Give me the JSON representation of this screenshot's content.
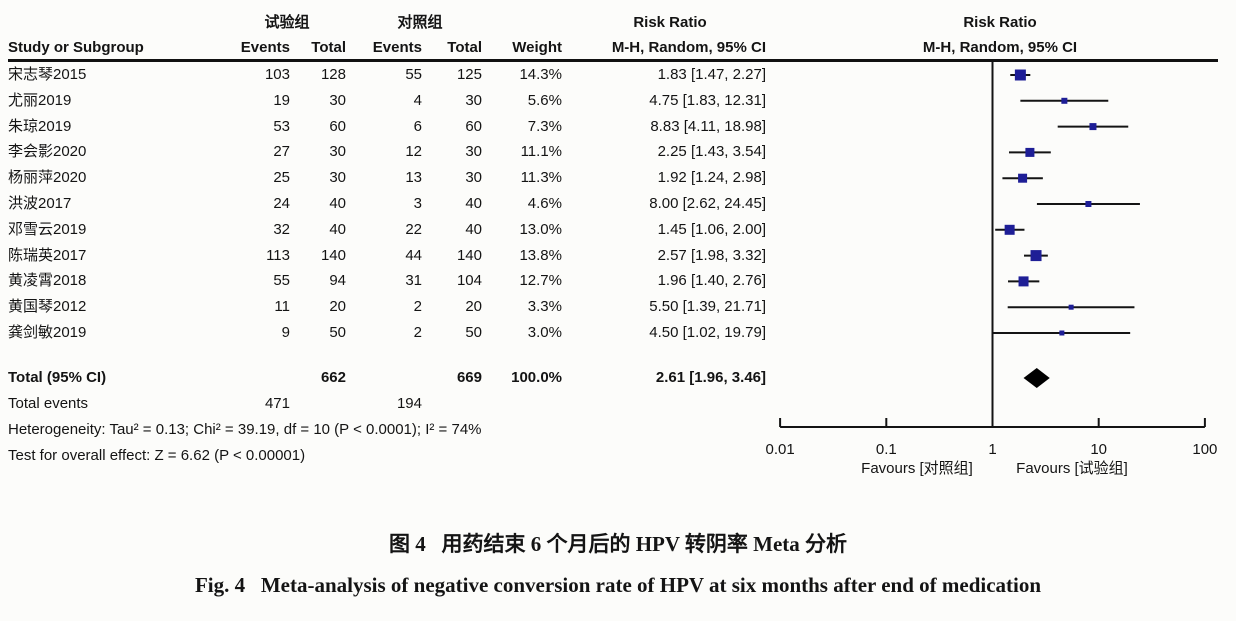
{
  "header": {
    "group_exp": "试验组",
    "group_ctrl": "对照组",
    "risk_ratio_title_text": "Risk Ratio",
    "risk_ratio_title_plot": "Risk Ratio",
    "method_text": "M-H, Random, 95% CI",
    "method_plot": "M-H, Random, 95% CI",
    "study_col": "Study or Subgroup",
    "events_col": "Events",
    "total_col": "Total",
    "weight_col": "Weight"
  },
  "chart_data": {
    "type": "forest",
    "title": "Risk Ratio, M-H, Random, 95% CI",
    "x_axis": {
      "scale": "log10",
      "ticks": [
        0.01,
        0.1,
        1,
        10,
        100
      ],
      "tick_labels": [
        "0.01",
        "0.1",
        "1",
        "10",
        "100"
      ],
      "xlim": [
        0.01,
        100
      ]
    },
    "favours_left": "Favours [对照组]",
    "favours_right": "Favours [试验组]",
    "studies": [
      {
        "name": "宋志琴2015",
        "events_exp": "103",
        "total_exp": "128",
        "events_ctrl": "55",
        "total_ctrl": "125",
        "weight": "14.3%",
        "weight_val": 14.3,
        "rr": 1.83,
        "ci_low": 1.47,
        "ci_high": 2.27,
        "label": "1.83 [1.47, 2.27]"
      },
      {
        "name": "尤丽2019",
        "events_exp": "19",
        "total_exp": "30",
        "events_ctrl": "4",
        "total_ctrl": "30",
        "weight": "5.6%",
        "weight_val": 5.6,
        "rr": 4.75,
        "ci_low": 1.83,
        "ci_high": 12.31,
        "label": "4.75 [1.83, 12.31]"
      },
      {
        "name": "朱琼2019",
        "events_exp": "53",
        "total_exp": "60",
        "events_ctrl": "6",
        "total_ctrl": "60",
        "weight": "7.3%",
        "weight_val": 7.3,
        "rr": 8.83,
        "ci_low": 4.11,
        "ci_high": 18.98,
        "label": "8.83 [4.11, 18.98]"
      },
      {
        "name": "李会影2020",
        "events_exp": "27",
        "total_exp": "30",
        "events_ctrl": "12",
        "total_ctrl": "30",
        "weight": "11.1%",
        "weight_val": 11.1,
        "rr": 2.25,
        "ci_low": 1.43,
        "ci_high": 3.54,
        "label": "2.25 [1.43, 3.54]"
      },
      {
        "name": "杨丽萍2020",
        "events_exp": "25",
        "total_exp": "30",
        "events_ctrl": "13",
        "total_ctrl": "30",
        "weight": "11.3%",
        "weight_val": 11.3,
        "rr": 1.92,
        "ci_low": 1.24,
        "ci_high": 2.98,
        "label": "1.92 [1.24, 2.98]"
      },
      {
        "name": "洪波2017",
        "events_exp": "24",
        "total_exp": "40",
        "events_ctrl": "3",
        "total_ctrl": "40",
        "weight": "4.6%",
        "weight_val": 4.6,
        "rr": 8.0,
        "ci_low": 2.62,
        "ci_high": 24.45,
        "label": "8.00 [2.62, 24.45]"
      },
      {
        "name": "邓雪云2019",
        "events_exp": "32",
        "total_exp": "40",
        "events_ctrl": "22",
        "total_ctrl": "40",
        "weight": "13.0%",
        "weight_val": 13.0,
        "rr": 1.45,
        "ci_low": 1.06,
        "ci_high": 2.0,
        "label": "1.45 [1.06, 2.00]"
      },
      {
        "name": "陈瑞英2017",
        "events_exp": "113",
        "total_exp": "140",
        "events_ctrl": "44",
        "total_ctrl": "140",
        "weight": "13.8%",
        "weight_val": 13.8,
        "rr": 2.57,
        "ci_low": 1.98,
        "ci_high": 3.32,
        "label": "2.57 [1.98, 3.32]"
      },
      {
        "name": "黄凌霄2018",
        "events_exp": "55",
        "total_exp": "94",
        "events_ctrl": "31",
        "total_ctrl": "104",
        "weight": "12.7%",
        "weight_val": 12.7,
        "rr": 1.96,
        "ci_low": 1.4,
        "ci_high": 2.76,
        "label": "1.96 [1.40, 2.76]"
      },
      {
        "name": "黄国琴2012",
        "events_exp": "11",
        "total_exp": "20",
        "events_ctrl": "2",
        "total_ctrl": "20",
        "weight": "3.3%",
        "weight_val": 3.3,
        "rr": 5.5,
        "ci_low": 1.39,
        "ci_high": 21.71,
        "label": "5.50 [1.39, 21.71]"
      },
      {
        "name": "龚剑敏2019",
        "events_exp": "9",
        "total_exp": "50",
        "events_ctrl": "2",
        "total_ctrl": "50",
        "weight": "3.0%",
        "weight_val": 3.0,
        "rr": 4.5,
        "ci_low": 1.02,
        "ci_high": 19.79,
        "label": "4.50 [1.02, 19.79]"
      }
    ],
    "total": {
      "name": "Total (95% CI)",
      "total_exp": "662",
      "total_ctrl": "669",
      "weight": "100.0%",
      "rr": 2.61,
      "ci_low": 1.96,
      "ci_high": 3.46,
      "label": "2.61 [1.96, 3.46]"
    },
    "total_events": {
      "name": "Total events",
      "exp": "471",
      "ctrl": "194"
    },
    "heterogeneity": "Heterogeneity: Tau² = 0.13; Chi² = 39.19, df = 10 (P < 0.0001); I² = 74%",
    "overall_effect": "Test for overall effect: Z = 6.62 (P < 0.00001)"
  },
  "captions": {
    "zh": "图 4   用药结束 6 个月后的 HPV 转阴率 Meta 分析",
    "en": "Fig. 4   Meta-analysis of negative conversion rate of HPV at six months after end of medication"
  },
  "colors": {
    "marker": "#1e1e96",
    "ci_line": "#141414",
    "diamond": "#000000",
    "axis": "#141414",
    "background": "#fcfcfa"
  }
}
